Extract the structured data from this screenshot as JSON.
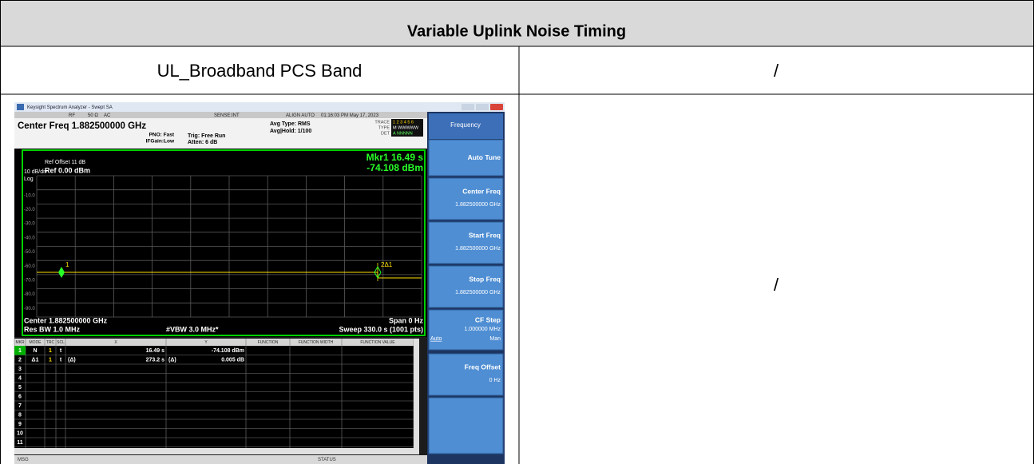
{
  "table": {
    "title": "Variable Uplink Noise Timing",
    "header_row": [
      "UL_Broadband PCS Band",
      "/"
    ],
    "body_right": "/"
  },
  "screenshot": {
    "window_title": "Keysight Spectrum Analyzer - Swept SA",
    "status_bar": [
      "RF",
      "50 Ω",
      "AC",
      "SENSE:INT",
      "ALIGN AUTO",
      "01:16:03 PM May 17, 2023"
    ],
    "center_freq": "Center Freq 1.882500000 GHz",
    "pno": "PNO: Fast",
    "ifgain": "IFGain:Low",
    "trig": "Trig: Free Run",
    "atten": "Atten: 6 dB",
    "avg_type": "Avg Type: RMS",
    "avg_hold": "Avg|Hold: 1/100",
    "trace": {
      "trace_label": "TRACE",
      "trace_nums": "1 2 3 4 5 6",
      "type_label": "TYPE",
      "type_val": "M WWWWW",
      "det_label": "DET",
      "det_val": "A NNNNN"
    },
    "ref_offset": "Ref Offset 11 dB",
    "scale": "10 dB/div",
    "ref_level": "Ref 0.00 dBm",
    "log": "Log",
    "marker_readout": [
      "Mkr1 16.49 s",
      "-74.108 dBm"
    ],
    "y_labels": [
      "-10.0",
      "-20.0",
      "-30.0",
      "-40.0",
      "-50.0",
      "-60.0",
      "-70.0",
      "-80.0",
      "-90.0"
    ],
    "marker_labels": [
      "1",
      "2Δ1"
    ],
    "footer": {
      "center": "Center 1.882500000 GHz",
      "span": "Span 0 Hz",
      "rbw": "Res BW 1.0 MHz",
      "vbw": "#VBW 3.0 MHz*",
      "sweep": "Sweep  330.0 s (1001 pts)"
    },
    "marker_table": {
      "headers": [
        "MKR",
        "MODE",
        "TRC",
        "SCL",
        "X",
        "Y",
        "FUNCTION",
        "FUNCTION WIDTH",
        "FUNCTION VALUE"
      ],
      "rows": [
        {
          "mkr": "1",
          "mode": "N",
          "trc": "1",
          "scl": "t",
          "x": "16.49 s",
          "y": "-74.108 dBm"
        },
        {
          "mkr": "2",
          "mode": "Δ1",
          "trc": "1",
          "scl": "t",
          "x_ref": "(Δ)",
          "x": "273.2 s",
          "y_ref": "(Δ)",
          "y": "0.005 dB"
        },
        {
          "mkr": "3"
        },
        {
          "mkr": "4"
        },
        {
          "mkr": "5"
        },
        {
          "mkr": "6"
        },
        {
          "mkr": "7"
        },
        {
          "mkr": "8"
        },
        {
          "mkr": "9"
        },
        {
          "mkr": "10"
        },
        {
          "mkr": "11"
        }
      ]
    },
    "msg": "MSG",
    "status": "STATUS",
    "softkeys": {
      "menu_title": "Frequency",
      "keys": [
        {
          "label": "Auto Tune"
        },
        {
          "label": "Center Freq",
          "value": "1.882500000 GHz"
        },
        {
          "label": "Start Freq",
          "value": "1.882500000 GHz"
        },
        {
          "label": "Stop Freq",
          "value": "1.882500000 GHz"
        },
        {
          "label": "CF Step",
          "value": "1.000000 MHz",
          "auto": "Auto",
          "man": "Man"
        },
        {
          "label": "Freq Offset",
          "value": "0 Hz"
        }
      ]
    }
  }
}
